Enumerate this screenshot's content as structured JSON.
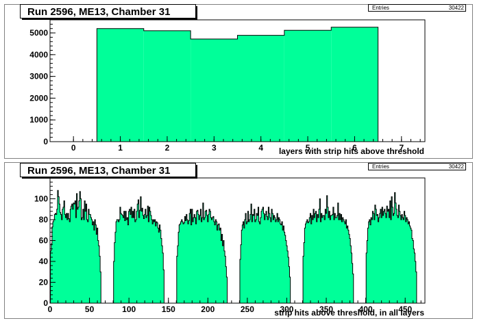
{
  "colors": {
    "fill": "#00ff99",
    "frame": "#808080"
  },
  "chart_data": [
    {
      "type": "bar",
      "title": "Run 2596, ME13, Chamber 31",
      "stats_label": "Entries",
      "stats_value": "30422",
      "xlabel": "layers with strip hits above threshold",
      "xlim": [
        -0.5,
        7.5
      ],
      "ylim": [
        0,
        5600
      ],
      "xticks": [
        0,
        1,
        2,
        3,
        4,
        5,
        6,
        7
      ],
      "yticks": [
        0,
        1000,
        2000,
        3000,
        4000,
        5000
      ],
      "categories": [
        1,
        2,
        3,
        4,
        5,
        6
      ],
      "values": [
        5200,
        5100,
        4720,
        4890,
        5120,
        5260
      ]
    },
    {
      "type": "bar",
      "title": "Run 2596, ME13, Chamber 31",
      "stats_label": "Entries",
      "stats_value": "30422",
      "xlabel": "strip hits above threshold, in all layers",
      "xlim": [
        0,
        475
      ],
      "ylim": [
        0,
        120
      ],
      "xticks": [
        0,
        50,
        100,
        150,
        200,
        250,
        300,
        350,
        400,
        450
      ],
      "yticks": [
        0,
        20,
        40,
        60,
        80,
        100
      ],
      "layer_starts": [
        1,
        81,
        161,
        241,
        321,
        401
      ],
      "layer_width": 64,
      "values": [
        [
          50,
          57,
          73,
          78,
          80,
          85,
          86,
          85,
          90,
          108,
          102,
          95,
          87,
          85,
          80,
          90,
          92,
          98,
          85,
          82,
          86,
          80,
          86,
          81,
          78,
          90,
          93,
          95,
          90,
          96,
          95,
          98,
          82,
          105,
          90,
          92,
          98,
          107,
          100,
          80,
          82,
          90,
          80,
          98,
          88,
          95,
          80,
          78,
          90,
          85,
          85,
          82,
          80,
          75,
          78,
          70,
          80,
          75,
          66,
          72,
          60,
          55,
          45,
          30
        ],
        [
          40,
          58,
          68,
          78,
          80,
          80,
          78,
          80,
          92,
          86,
          85,
          84,
          82,
          88,
          79,
          88,
          80,
          82,
          75,
          88,
          90,
          85,
          92,
          82,
          88,
          82,
          90,
          78,
          80,
          88,
          95,
          99,
          82,
          89,
          102,
          88,
          91,
          84,
          81,
          85,
          90,
          82,
          84,
          93,
          78,
          92,
          88,
          84,
          80,
          76,
          80,
          78,
          80,
          74,
          78,
          77,
          72,
          68,
          75,
          70,
          62,
          55,
          48,
          32
        ],
        [
          45,
          55,
          68,
          75,
          76,
          78,
          80,
          78,
          76,
          77,
          83,
          79,
          85,
          80,
          76,
          79,
          86,
          90,
          75,
          90,
          78,
          82,
          85,
          82,
          76,
          88,
          89,
          85,
          80,
          84,
          90,
          78,
          82,
          96,
          80,
          82,
          88,
          89,
          84,
          78,
          85,
          90,
          88,
          82,
          80,
          82,
          83,
          78,
          75,
          80,
          78,
          70,
          75,
          76,
          70,
          72,
          60,
          66,
          55,
          60,
          50,
          45,
          35,
          25
        ],
        [
          42,
          56,
          70,
          75,
          78,
          72,
          80,
          86,
          76,
          78,
          88,
          78,
          80,
          85,
          95,
          78,
          85,
          84,
          90,
          78,
          80,
          86,
          84,
          92,
          78,
          76,
          82,
          88,
          90,
          92,
          86,
          80,
          85,
          88,
          83,
          80,
          92,
          86,
          82,
          78,
          90,
          86,
          80,
          84,
          82,
          78,
          80,
          86,
          78,
          82,
          80,
          76,
          75,
          78,
          70,
          74,
          68,
          65,
          60,
          55,
          50,
          44,
          35,
          25
        ],
        [
          45,
          58,
          72,
          76,
          78,
          80,
          77,
          78,
          82,
          86,
          76,
          84,
          80,
          90,
          82,
          86,
          88,
          78,
          85,
          82,
          90,
          100,
          78,
          86,
          82,
          84,
          84,
          80,
          90,
          86,
          103,
          92,
          82,
          88,
          80,
          84,
          84,
          85,
          92,
          80,
          86,
          82,
          82,
          84,
          96,
          80,
          86,
          80,
          85,
          78,
          82,
          80,
          78,
          76,
          80,
          72,
          74,
          70,
          66,
          62,
          55,
          48,
          38,
          28
        ],
        [
          48,
          60,
          72,
          78,
          80,
          75,
          82,
          80,
          88,
          86,
          80,
          94,
          90,
          84,
          85,
          78,
          82,
          86,
          90,
          82,
          92,
          84,
          88,
          90,
          86,
          82,
          93,
          88,
          90,
          82,
          98,
          80,
          102,
          92,
          84,
          86,
          106,
          96,
          90,
          84,
          82,
          94,
          88,
          84,
          80,
          85,
          82,
          80,
          88,
          84,
          78,
          82,
          80,
          76,
          78,
          74,
          72,
          70,
          62,
          60,
          52,
          48,
          40,
          30
        ]
      ]
    }
  ]
}
